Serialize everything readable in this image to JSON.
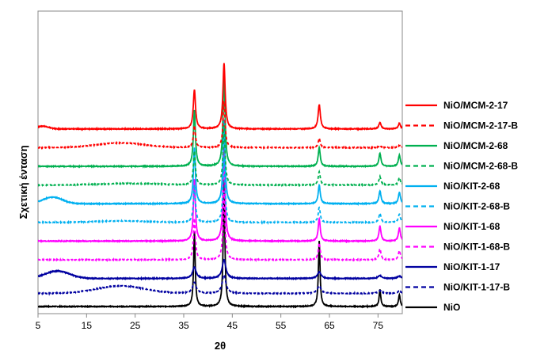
{
  "chart_data": {
    "type": "line",
    "title": "",
    "xlabel": "2θ",
    "ylabel": "Σχετική ένταση",
    "xlim": [
      5,
      80
    ],
    "xticks": [
      5,
      15,
      25,
      35,
      45,
      55,
      65,
      75
    ],
    "y_ticks_shown": false,
    "grid": false,
    "legend_position": "right",
    "peaks_2theta": [
      37.2,
      43.3,
      62.9,
      75.4,
      79.4
    ],
    "series": [
      {
        "name": "NiO/MCM-2-17",
        "color": "#ff0000",
        "dash": "solid",
        "offset": 9.5,
        "peaks": [
          2.1,
          3.5,
          1.3,
          0.35,
          0.3
        ],
        "width": 0.55,
        "hump": {
          "center": 6,
          "amp": 0.15,
          "sigma": 1.2
        }
      },
      {
        "name": "NiO/MCM-2-17-B",
        "color": "#ff0000",
        "dash": "dashed",
        "offset": 8.5,
        "peaks": [
          1.2,
          2.5,
          0.5,
          0.12,
          0.12
        ],
        "width": 0.5,
        "hump": {
          "center": 22,
          "amp": 0.25,
          "sigma": 5
        }
      },
      {
        "name": "NiO/MCM-2-68",
        "color": "#00b050",
        "dash": "solid",
        "offset": 7.5,
        "peaks": [
          3.0,
          5.0,
          1.0,
          0.7,
          0.6
        ],
        "width": 0.5,
        "hump": null
      },
      {
        "name": "NiO/MCM-2-68-B",
        "color": "#00b050",
        "dash": "dashed",
        "offset": 6.5,
        "peaks": [
          1.8,
          3.2,
          0.7,
          0.45,
          0.4
        ],
        "width": 0.5,
        "hump": {
          "center": 24,
          "amp": 0.08,
          "sigma": 6
        }
      },
      {
        "name": "NiO/KIT-2-68",
        "color": "#00b0f0",
        "dash": "solid",
        "offset": 5.5,
        "peaks": [
          3.0,
          4.5,
          1.0,
          0.7,
          0.6
        ],
        "width": 0.5,
        "hump": {
          "center": 8,
          "amp": 0.35,
          "sigma": 2
        }
      },
      {
        "name": "NiO/KIT-2-68-B",
        "color": "#00b0f0",
        "dash": "dashed",
        "offset": 4.5,
        "peaks": [
          2.0,
          3.5,
          0.8,
          0.5,
          0.45
        ],
        "width": 0.5,
        "hump": {
          "center": 22,
          "amp": 0.08,
          "sigma": 5
        }
      },
      {
        "name": "NiO/KIT-1-68",
        "color": "#ff00ff",
        "dash": "solid",
        "offset": 3.5,
        "peaks": [
          3.3,
          5.0,
          1.2,
          0.8,
          0.7
        ],
        "width": 0.5,
        "hump": null
      },
      {
        "name": "NiO/KIT-1-68-B",
        "color": "#ff00ff",
        "dash": "dashed",
        "offset": 2.5,
        "peaks": [
          2.2,
          3.7,
          0.9,
          0.6,
          0.5
        ],
        "width": 0.5,
        "hump": null
      },
      {
        "name": "NiO/KIT-1-17",
        "color": "#0000a0",
        "dash": "solid",
        "offset": 1.5,
        "peaks": [
          0.6,
          1.0,
          0.35,
          0.15,
          0.12
        ],
        "width": 0.9,
        "hump": {
          "center": 9,
          "amp": 0.4,
          "sigma": 2.5
        }
      },
      {
        "name": "NiO/KIT-1-17-B",
        "color": "#0000a0",
        "dash": "dashed",
        "offset": 0.7,
        "peaks": [
          0.6,
          1.0,
          0.4,
          0.15,
          0.12
        ],
        "width": 0.9,
        "hump": {
          "center": 22,
          "amp": 0.4,
          "sigma": 5
        }
      },
      {
        "name": "NiO",
        "color": "#000000",
        "dash": "solid",
        "offset": 0.0,
        "peaks": [
          4.0,
          6.8,
          3.5,
          0.9,
          0.65
        ],
        "width": 0.4,
        "hump": null
      }
    ]
  }
}
